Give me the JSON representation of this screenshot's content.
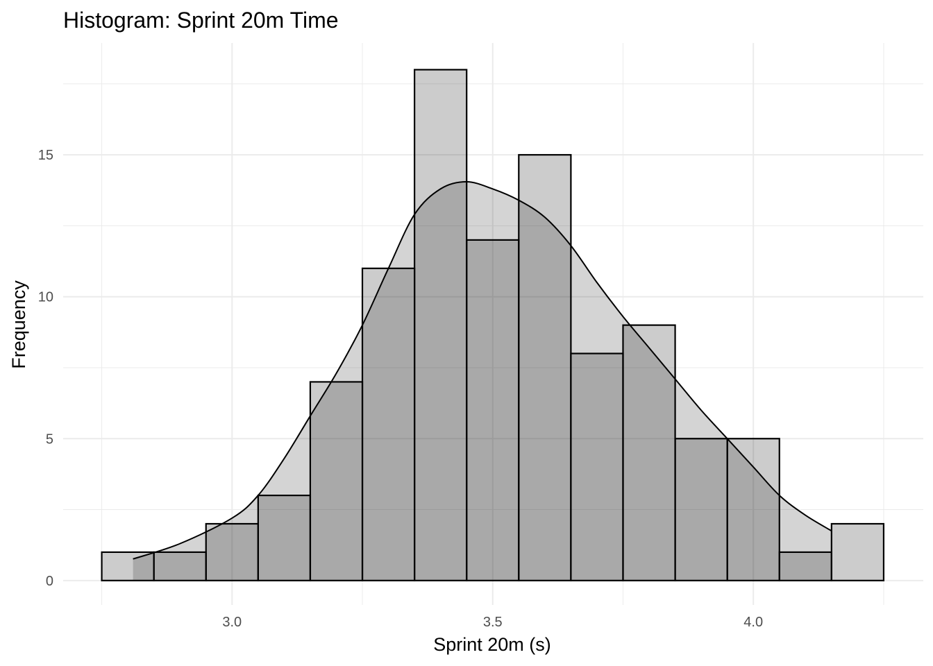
{
  "chart_data": {
    "type": "bar",
    "title": "Histogram: Sprint 20m Time",
    "xlabel": "Sprint 20m (s)",
    "ylabel": "Frequency",
    "xlim": [
      2.676,
      4.326
    ],
    "ylim": [
      -0.86,
      18.94
    ],
    "binwidth": 0.1,
    "bins": [
      {
        "start": 2.75,
        "end": 2.85,
        "count": 1
      },
      {
        "start": 2.85,
        "end": 2.95,
        "count": 1
      },
      {
        "start": 2.95,
        "end": 3.05,
        "count": 2
      },
      {
        "start": 3.05,
        "end": 3.15,
        "count": 3
      },
      {
        "start": 3.15,
        "end": 3.25,
        "count": 7
      },
      {
        "start": 3.25,
        "end": 3.35,
        "count": 11
      },
      {
        "start": 3.35,
        "end": 3.45,
        "count": 18
      },
      {
        "start": 3.45,
        "end": 3.55,
        "count": 12
      },
      {
        "start": 3.55,
        "end": 3.65,
        "count": 15
      },
      {
        "start": 3.65,
        "end": 3.75,
        "count": 8
      },
      {
        "start": 3.75,
        "end": 3.85,
        "count": 9
      },
      {
        "start": 3.85,
        "end": 3.95,
        "count": 5
      },
      {
        "start": 3.95,
        "end": 4.05,
        "count": 5
      },
      {
        "start": 4.05,
        "end": 4.15,
        "count": 1
      },
      {
        "start": 4.15,
        "end": 4.25,
        "count": 2
      }
    ],
    "density_curve": {
      "x": [
        2.81,
        2.9,
        3.0,
        3.05,
        3.1,
        3.15,
        3.2,
        3.25,
        3.3,
        3.35,
        3.4,
        3.45,
        3.5,
        3.55,
        3.6,
        3.65,
        3.7,
        3.75,
        3.8,
        3.85,
        3.9,
        3.95,
        4.0,
        4.05,
        4.1,
        4.15
      ],
      "y": [
        0.76,
        1.3,
        2.2,
        3.0,
        4.3,
        5.8,
        7.3,
        9.0,
        11.0,
        12.9,
        13.8,
        14.05,
        13.8,
        13.4,
        12.8,
        11.8,
        10.5,
        9.3,
        8.2,
        7.1,
        6.0,
        5.0,
        4.0,
        3.0,
        2.3,
        1.75
      ]
    },
    "x_ticks": [
      {
        "value": 3.0,
        "label": "3.0"
      },
      {
        "value": 3.5,
        "label": "3.5"
      },
      {
        "value": 4.0,
        "label": "4.0"
      }
    ],
    "x_minor": [
      2.75,
      3.25,
      3.75,
      4.25
    ],
    "y_ticks": [
      {
        "value": 0,
        "label": "0"
      },
      {
        "value": 5,
        "label": "5"
      },
      {
        "value": 10,
        "label": "10"
      },
      {
        "value": 15,
        "label": "15"
      }
    ],
    "y_minor": [
      2.5,
      7.5,
      12.5,
      17.5
    ],
    "grid": true,
    "legend": "none",
    "colors": {
      "bar_fill": "rgba(0,0,0,0.2)",
      "density_fill": "rgba(0,0,0,0.17)",
      "outline": "#000000",
      "grid": "#ebebeb"
    }
  }
}
